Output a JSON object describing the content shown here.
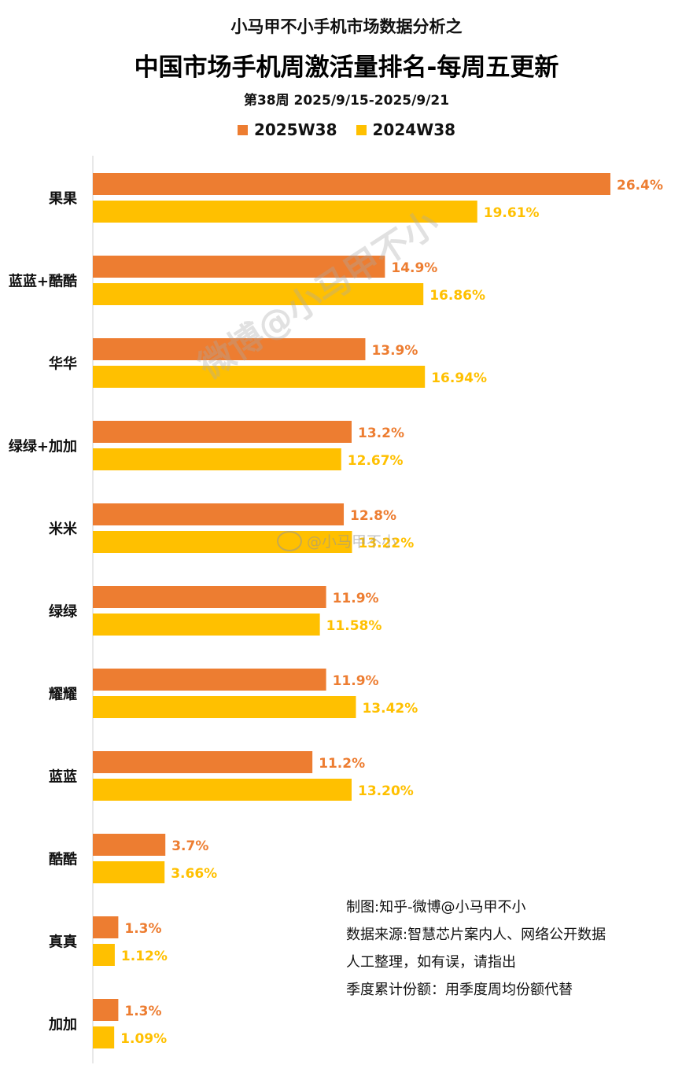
{
  "header": {
    "pretitle": "小马甲不小手机市场数据分析之",
    "title": "中国市场手机周激活量排名-每周五更新",
    "subtitle": "第38周 2025/9/15-2025/9/21"
  },
  "notes": {
    "line1": "制图:知乎-微博@小马甲不小",
    "line2": "数据来源:智慧芯片案内人、网络公开数据",
    "line3": "人工整理，如有误，请指出",
    "line4": "季度累计份额：用季度周均份额代替"
  },
  "watermarks": {
    "diagonal": "微博@小马甲不小",
    "inline": "@小马甲不小"
  },
  "colors": {
    "series_2025": "#ED7D31",
    "series_2024": "#FFC000"
  },
  "chart_data": {
    "type": "bar",
    "orientation": "horizontal",
    "categories": [
      "果果",
      "蓝蓝+酷酷",
      "华华",
      "绿绿+加加",
      "米米",
      "绿绿",
      "耀耀",
      "蓝蓝",
      "酷酷",
      "真真",
      "加加"
    ],
    "series": [
      {
        "name": "2025W38",
        "color": "#ED7D31",
        "values": [
          26.4,
          14.9,
          13.9,
          13.2,
          12.8,
          11.9,
          11.9,
          11.2,
          3.7,
          1.3,
          1.3
        ],
        "labels": [
          "26.4%",
          "14.9%",
          "13.9%",
          "13.2%",
          "12.8%",
          "11.9%",
          "11.9%",
          "11.2%",
          "3.7%",
          "1.3%",
          "1.3%"
        ]
      },
      {
        "name": "2024W38",
        "color": "#FFC000",
        "values": [
          19.61,
          16.86,
          16.94,
          12.67,
          13.22,
          11.58,
          13.42,
          13.2,
          3.66,
          1.12,
          1.09
        ],
        "labels": [
          "19.61%",
          "16.86%",
          "16.94%",
          "12.67%",
          "13.22%",
          "11.58%",
          "13.42%",
          "13.20%",
          "3.66%",
          "1.12%",
          "1.09%"
        ]
      }
    ],
    "xlim": [
      0,
      26.4
    ],
    "legend_position": "top-center",
    "grid": false
  }
}
